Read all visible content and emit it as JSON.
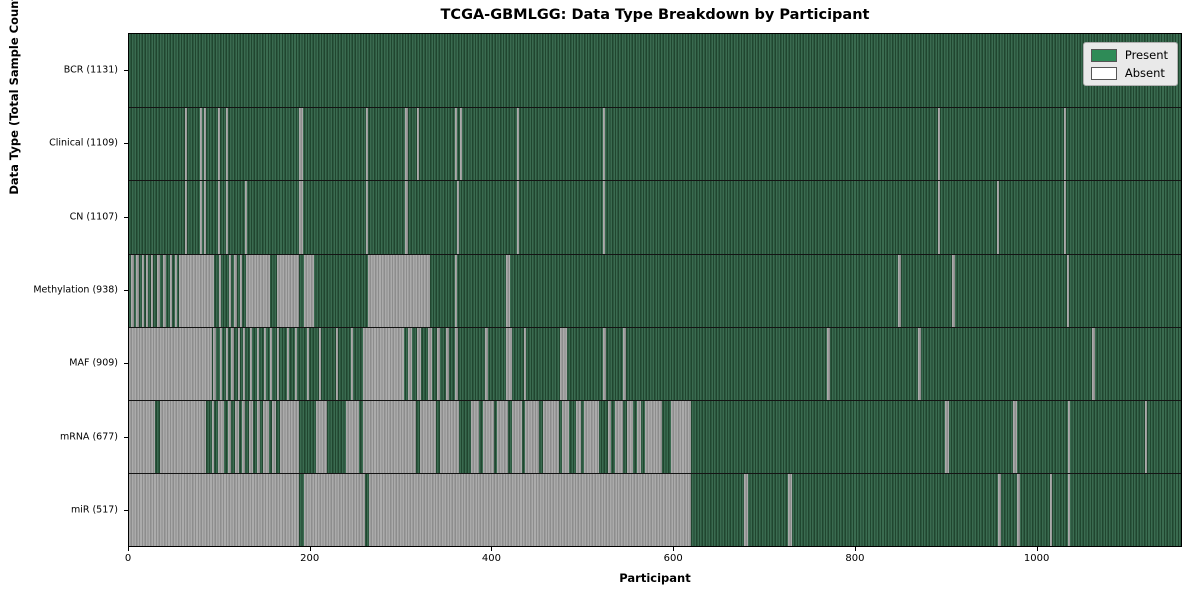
{
  "title": "TCGA-GBMLGG: Data Type Breakdown by Participant",
  "xlabel": "Participant",
  "ylabel": "Data Type (Total Sample Count)",
  "legend": {
    "present_label": "Present",
    "absent_label": "Absent"
  },
  "colors": {
    "present": "#2e8b57",
    "present_dark": "#20462f",
    "absent": "#ffffff",
    "absent_bar": "#9c9c9c",
    "legend_bg": "#e9e9e9"
  },
  "chart_data": {
    "type": "heatmap",
    "title": "TCGA-GBMLGG: Data Type Breakdown by Participant",
    "xlabel": "Participant",
    "ylabel": "Data Type (Total Sample Count)",
    "legend_entries": [
      {
        "label": "Present",
        "color": "#2e8b57"
      },
      {
        "label": "Absent",
        "color": "#ffffff"
      }
    ],
    "legend_position": "upper right",
    "grid": false,
    "x_ticks": [
      0,
      200,
      400,
      600,
      800,
      1000
    ],
    "axis_max": 1160,
    "total_participants": 1131,
    "note_categories_top_to_bottom": [
      "BCR",
      "Clinical",
      "CN",
      "Methylation",
      "MAF",
      "mRNA",
      "miR"
    ],
    "rows": [
      {
        "label": "BCR (1131)",
        "name": "BCR",
        "present_count": 1131,
        "absent": []
      },
      {
        "label": "Clinical (1109)",
        "name": "Clinical",
        "present_count": 1109,
        "absent": [
          [
            62,
            64
          ],
          [
            78,
            80
          ],
          [
            83,
            85
          ],
          [
            98,
            100
          ],
          [
            107,
            109
          ],
          [
            188,
            192
          ],
          [
            261,
            263
          ],
          [
            304,
            308
          ],
          [
            318,
            320
          ],
          [
            360,
            362
          ],
          [
            365,
            367
          ],
          [
            428,
            430
          ],
          [
            523,
            525
          ],
          [
            892,
            894
          ],
          [
            1031,
            1033
          ]
        ]
      },
      {
        "label": "CN (1107)",
        "name": "CN",
        "present_count": 1107,
        "absent": [
          [
            62,
            64
          ],
          [
            78,
            80
          ],
          [
            83,
            85
          ],
          [
            98,
            100
          ],
          [
            107,
            109
          ],
          [
            128,
            130
          ],
          [
            188,
            192
          ],
          [
            261,
            263
          ],
          [
            304,
            308
          ],
          [
            362,
            364
          ],
          [
            428,
            430
          ],
          [
            523,
            525
          ],
          [
            892,
            894
          ],
          [
            957,
            959
          ],
          [
            1031,
            1033
          ]
        ]
      },
      {
        "label": "Methylation (938)",
        "name": "Methylation",
        "present_count": 938,
        "absent": [
          [
            2,
            5
          ],
          [
            8,
            11
          ],
          [
            14,
            16
          ],
          [
            19,
            21
          ],
          [
            24,
            27
          ],
          [
            31,
            34
          ],
          [
            38,
            41
          ],
          [
            45,
            47
          ],
          [
            51,
            53
          ],
          [
            55,
            94
          ],
          [
            99,
            101
          ],
          [
            110,
            113
          ],
          [
            116,
            119
          ],
          [
            122,
            125
          ],
          [
            129,
            156
          ],
          [
            163,
            187
          ],
          [
            193,
            204
          ],
          [
            264,
            332
          ],
          [
            360,
            362
          ],
          [
            416,
            420
          ],
          [
            848,
            851
          ],
          [
            908,
            911
          ],
          [
            1034,
            1037
          ]
        ]
      },
      {
        "label": "MAF (909)",
        "name": "MAF",
        "present_count": 909,
        "absent": [
          [
            0,
            91
          ],
          [
            93,
            96
          ],
          [
            100,
            103
          ],
          [
            107,
            109
          ],
          [
            113,
            116
          ],
          [
            120,
            122
          ],
          [
            126,
            128
          ],
          [
            133,
            136
          ],
          [
            141,
            143
          ],
          [
            149,
            151
          ],
          [
            156,
            158
          ],
          [
            163,
            165
          ],
          [
            174,
            176
          ],
          [
            183,
            185
          ],
          [
            196,
            198
          ],
          [
            210,
            212
          ],
          [
            228,
            230
          ],
          [
            245,
            247
          ],
          [
            258,
            303
          ],
          [
            308,
            312
          ],
          [
            318,
            322
          ],
          [
            330,
            334
          ],
          [
            340,
            343
          ],
          [
            350,
            353
          ],
          [
            360,
            363
          ],
          [
            392,
            396
          ],
          [
            416,
            422
          ],
          [
            435,
            438
          ],
          [
            475,
            483
          ],
          [
            523,
            526
          ],
          [
            545,
            548
          ],
          [
            770,
            773
          ],
          [
            870,
            873
          ],
          [
            1062,
            1065
          ]
        ]
      },
      {
        "label": "mRNA (677)",
        "name": "mRNA",
        "present_count": 677,
        "absent": [
          [
            0,
            29
          ],
          [
            34,
            85
          ],
          [
            91,
            94
          ],
          [
            98,
            105
          ],
          [
            109,
            113
          ],
          [
            117,
            121
          ],
          [
            125,
            128
          ],
          [
            132,
            137
          ],
          [
            141,
            144
          ],
          [
            148,
            154
          ],
          [
            158,
            162
          ],
          [
            166,
            188
          ],
          [
            206,
            218
          ],
          [
            239,
            254
          ],
          [
            258,
            317
          ],
          [
            321,
            339
          ],
          [
            343,
            364
          ],
          [
            377,
            386
          ],
          [
            390,
            402
          ],
          [
            406,
            418
          ],
          [
            422,
            433
          ],
          [
            437,
            452
          ],
          [
            456,
            474
          ],
          [
            478,
            485
          ],
          [
            493,
            498
          ],
          [
            502,
            518
          ],
          [
            528,
            532
          ],
          [
            536,
            545
          ],
          [
            549,
            556
          ],
          [
            560,
            565
          ],
          [
            569,
            588
          ],
          [
            598,
            620
          ],
          [
            900,
            904
          ],
          [
            975,
            979
          ],
          [
            1035,
            1038
          ],
          [
            1120,
            1123
          ]
        ]
      },
      {
        "label": "miR (517)",
        "name": "miR",
        "present_count": 517,
        "absent": [
          [
            0,
            188
          ],
          [
            193,
            260
          ],
          [
            265,
            620
          ],
          [
            678,
            682
          ],
          [
            727,
            731
          ],
          [
            958,
            962
          ],
          [
            979,
            983
          ],
          [
            1015,
            1018
          ],
          [
            1035,
            1038
          ]
        ]
      }
    ]
  }
}
